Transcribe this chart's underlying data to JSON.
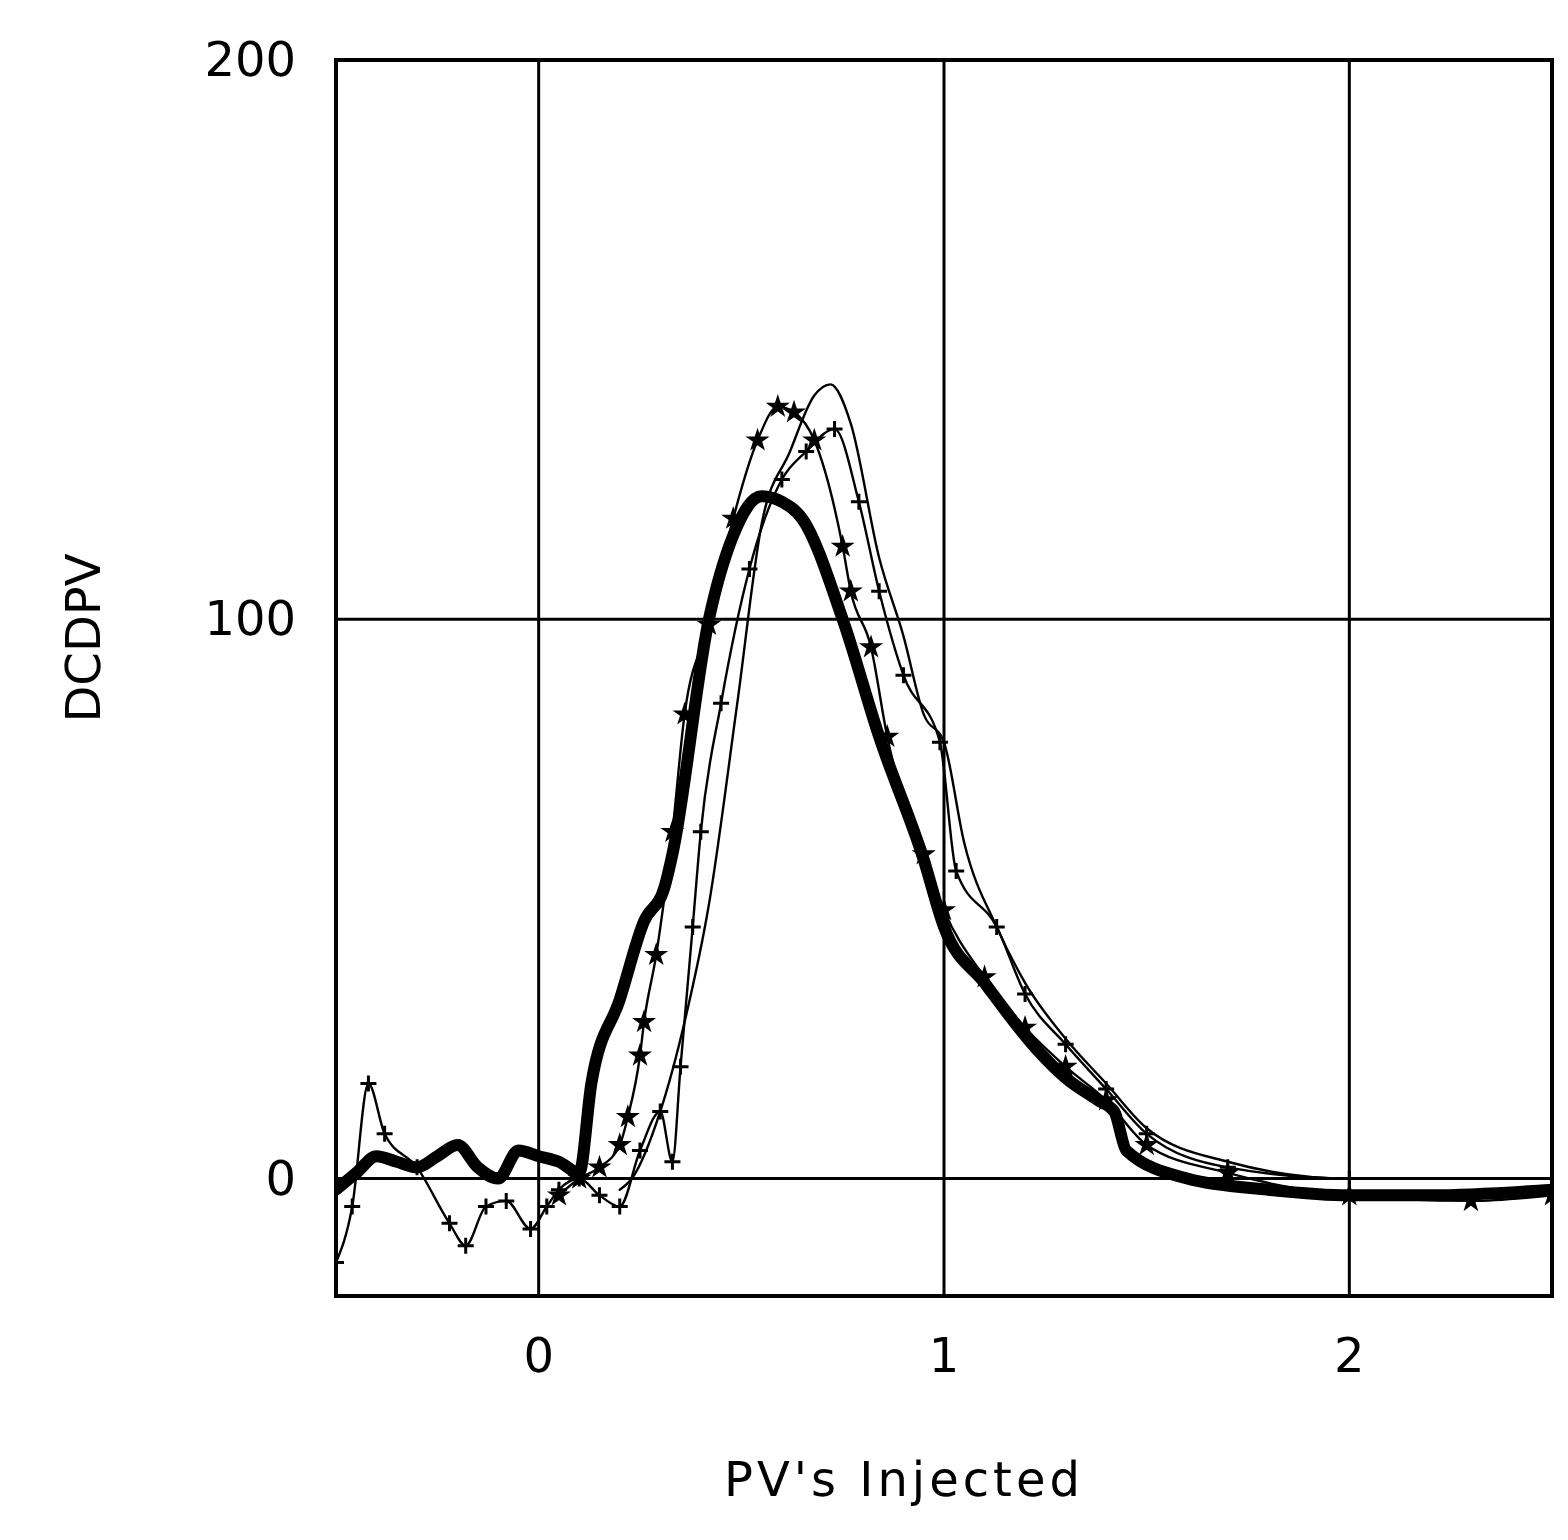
{
  "chart_data": {
    "type": "line",
    "xlabel": "PV's Injected",
    "ylabel": "DCDPV",
    "xlim": [
      -0.5,
      2.5
    ],
    "ylim": [
      -21,
      200
    ],
    "xticks": [
      0,
      1,
      2
    ],
    "yticks": [
      0,
      100,
      200
    ],
    "grid": true,
    "series": [
      {
        "color": "#000000",
        "marker": "none",
        "x": [
          -0.5,
          -0.45,
          -0.4,
          -0.35,
          -0.3,
          -0.25,
          -0.2,
          -0.15,
          -0.1,
          -0.05,
          0,
          0.05,
          0.1,
          0.13,
          0.2,
          0.26,
          0.31,
          0.33,
          0.42,
          0.48,
          0.55,
          0.6,
          0.65,
          0.75,
          0.84,
          0.95,
          1.0,
          1.1,
          1.23,
          1.3,
          1.38,
          1.42,
          1.45,
          1.6,
          1.8,
          2.0,
          2.2,
          2.5
        ],
        "values": [
          -2,
          1,
          4,
          3,
          2,
          4,
          6,
          2,
          0,
          5,
          4,
          3,
          1,
          17,
          32,
          46,
          52,
          58,
          100,
          115,
          122,
          121,
          118,
          100,
          79,
          57,
          45,
          35,
          23,
          18,
          14,
          12,
          5,
          0,
          -2,
          -3,
          -3,
          -2
        ]
      },
      {
        "color": "#000000",
        "marker": "star",
        "x": [
          0.05,
          0.1,
          0.15,
          0.2,
          0.22,
          0.25,
          0.26,
          0.29,
          0.33,
          0.36,
          0.42,
          0.48,
          0.54,
          0.59,
          0.63,
          0.68,
          0.75,
          0.77,
          0.82,
          0.86,
          0.95,
          1.0,
          1.1,
          1.2,
          1.3,
          1.4,
          1.5,
          1.7,
          2.0,
          2.3,
          2.5
        ],
        "values": [
          -3,
          0,
          2,
          6,
          11,
          22,
          28,
          40,
          62,
          83,
          99,
          118,
          132,
          138,
          137,
          132,
          113,
          105,
          95,
          79,
          58,
          48,
          36,
          27,
          20,
          14,
          6,
          1,
          -3,
          -4,
          -3
        ]
      },
      {
        "color": "#000000",
        "marker": "cross",
        "x": [
          -0.5,
          -0.46,
          -0.42,
          -0.38,
          -0.3,
          -0.22,
          -0.18,
          -0.13,
          -0.08,
          -0.02,
          0.02,
          0.05,
          0.1,
          0.15,
          0.2,
          0.25,
          0.3,
          0.33,
          0.35,
          0.38,
          0.4,
          0.45,
          0.52,
          0.6,
          0.66,
          0.73,
          0.79,
          0.84,
          0.9,
          0.99,
          1.03,
          1.13,
          1.2,
          1.3,
          1.4,
          1.5,
          1.7,
          2.0,
          2.5
        ],
        "values": [
          -15,
          -5,
          17,
          8,
          2,
          -8,
          -12,
          -5,
          -4,
          -9,
          -5,
          -2,
          0,
          -3,
          -5,
          5,
          12,
          3,
          20,
          45,
          62,
          85,
          109,
          125,
          130,
          134,
          121,
          105,
          90,
          78,
          55,
          45,
          33,
          24,
          16,
          8,
          2,
          0,
          0
        ]
      },
      {
        "color": "#000000",
        "marker": "none",
        "x": [
          0.2,
          0.23,
          0.3,
          0.36,
          0.42,
          0.49,
          0.55,
          0.62,
          0.68,
          0.72,
          0.77,
          0.84,
          0.9,
          0.95,
          1.0,
          1.05,
          1.13,
          1.2,
          1.3,
          1.4,
          1.5,
          1.7,
          2.0,
          2.5
        ],
        "values": [
          -2,
          0,
          12,
          28,
          49,
          85,
          117,
          130,
          140,
          142,
          135,
          111,
          97,
          83,
          78,
          60,
          45,
          35,
          25,
          17,
          9,
          3,
          0,
          0
        ]
      }
    ]
  }
}
